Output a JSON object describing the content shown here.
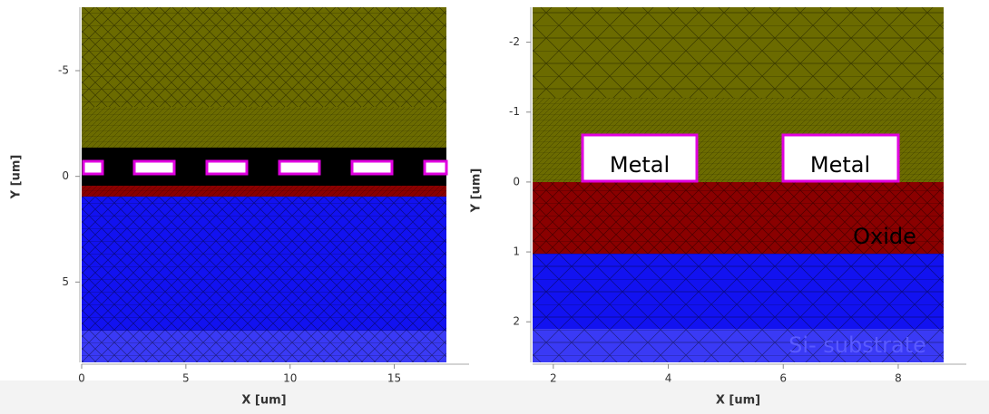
{
  "panels": [
    {
      "xlabel": "X [um]",
      "ylabel": "Y [um]",
      "xlim": [
        0,
        17.5
      ],
      "ylim": [
        -8,
        8.8
      ],
      "xticks": [
        0,
        5,
        10,
        15
      ],
      "yticks": [
        -5,
        0,
        5
      ]
    },
    {
      "xlabel": "X [um]",
      "ylabel": "Y [um]",
      "xlim": [
        1.64,
        8.79
      ],
      "ylim": [
        -2.5,
        2.58
      ],
      "xticks": [
        2,
        4,
        6,
        8
      ],
      "yticks": [
        -2,
        -1,
        0,
        1,
        2
      ],
      "region_labels": [
        "Metal",
        "Metal",
        "Oxide",
        "Si- substrate"
      ]
    }
  ]
}
